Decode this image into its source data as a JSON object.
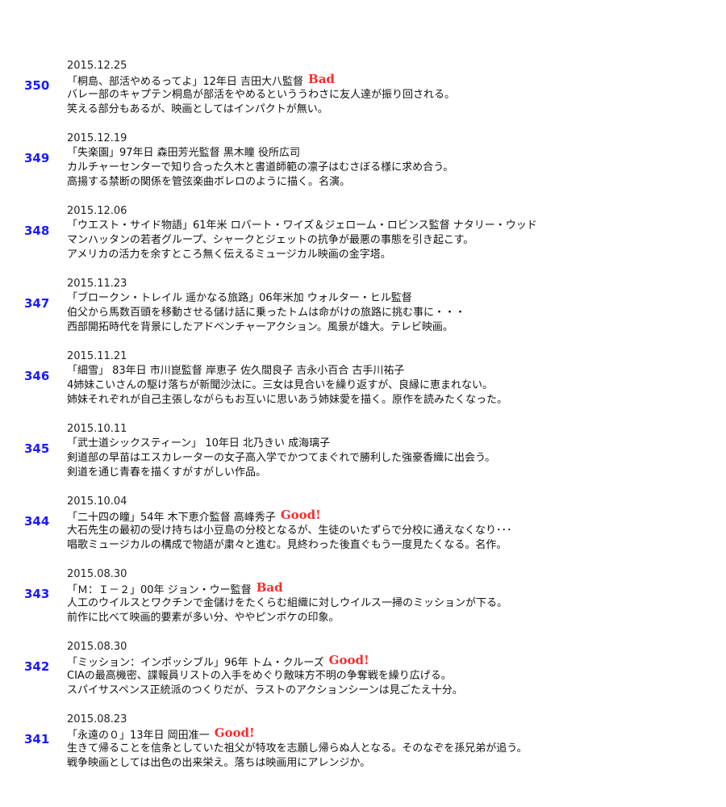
{
  "entries": [
    {
      "number": "350",
      "date": "2015.12.25",
      "title_line": "「桐島、部活やめるってよ」12年日 吉田大八監督",
      "rating": "Bad",
      "rating_color": "#ff2a2a",
      "line2": "バレー部のキャプテン桐島が部活をやめるといううわさに友人達が振り回される。",
      "line3": "笑える部分もあるが、映画としてはインパクトが無い。"
    },
    {
      "number": "349",
      "date": "2015.12.19",
      "title_line": "「失楽園」97年日 森田芳光監督 黒木瞳 役所広司",
      "rating": "",
      "line2": "カルチャーセンターで知り合った久木と書道師範の凛子はむさぼる様に求め合う。",
      "line3": "高揚する禁断の関係を管弦楽曲ボレロのように描く。名演。"
    },
    {
      "number": "348",
      "date": "2015.12.06",
      "title_line": "「ウエスト・サイド物語」61年米 ロバート・ワイズ＆ジェローム・ロビンス監督 ナタリー・ウッド",
      "rating": "",
      "line2": "マンハッタンの若者グループ、シャークとジェットの抗争が最悪の事態を引き起こす。",
      "line3": "アメリカの活力を余すところ無く伝えるミュージカル映画の金字塔。"
    },
    {
      "number": "347",
      "date": "2015.11.23",
      "title_line": "「ブロークン・トレイル 遥かなる旅路」06年米加 ウォルター・ヒル監督",
      "rating": "",
      "line2": "伯父から馬数百頭を移動させる儲け話に乗ったトムは命がけの旅路に挑む事に・・・",
      "line3": "西部開拓時代を背景にしたアドベンチャーアクション。風景が雄大。テレビ映画。"
    },
    {
      "number": "346",
      "date": "2015.11.21",
      "title_line": "「細雪」 83年日 市川崑監督 岸恵子 佐久間良子 吉永小百合 古手川祐子",
      "rating": "",
      "line2": "4姉妹こいさんの駆け落ちが新聞沙汰に。三女は見合いを繰り返すが、良縁に恵まれない。",
      "line3": "姉妹それぞれが自己主張しながらもお互いに思いあう姉妹愛を描く。原作を読みたくなった。"
    },
    {
      "number": "345",
      "date": "2015.10.11",
      "title_line": "「武士道シックスティーン」 10年日 北乃きい 成海璃子",
      "rating": "",
      "line2": "剣道部の早苗はエスカレーターの女子高入学でかつてまぐれで勝利した強豪香織に出会う。",
      "line3": "剣道を通じ青春を描くすがすがしい作品。"
    },
    {
      "number": "344",
      "date": "2015.10.04",
      "title_line": "「二十四の瞳」54年 木下恵介監督 高峰秀子",
      "rating": "Good!",
      "rating_color": "#ff2a2a",
      "line2": "大石先生の最初の受け持ちは小豆島の分校となるが、生徒のいたずらで分校に通えなくなり･･･",
      "line3": "唱歌ミュージカルの構成で物語が粛々と進む。見終わった後直ぐもう一度見たくなる。名作。"
    },
    {
      "number": "343",
      "date": "2015.08.30",
      "title_line": "「Ｍ：Ｉ－２」00年 ジョン・ウー監督",
      "rating": "Bad",
      "rating_color": "#ff2a2a",
      "line2": "人工のウイルスとワクチンで金儲けをたくらむ組織に対しウイルス一掃のミッションが下る。",
      "line3": "前作に比べて映画的要素が多い分、ややピンボケの印象。"
    },
    {
      "number": "342",
      "date": "2015.08.30",
      "title_line": "「ミッション：インポッシブル」96年 トム・クルーズ",
      "rating": "Good!",
      "rating_color": "#ff2a2a",
      "line2": "CIAの最高機密、諜報員リストの入手をめぐり敵味方不明の争奪戦を繰り広げる。",
      "line3": "スパイサスペンス正統派のつくりだが、ラストのアクションシーンは見ごたえ十分。"
    },
    {
      "number": "341",
      "date": "2015.08.23",
      "title_line": "「永遠の０」13年日 岡田准一",
      "rating": "Good!",
      "rating_color": "#ff2a2a",
      "line2": "生きて帰ることを信条としていた祖父が特攻を志願し帰らぬ人となる。そのなぞを孫兄弟が追う。",
      "line3": "戦争映画としては出色の出来栄え。落ちは映画用にアレンジか。"
    }
  ]
}
